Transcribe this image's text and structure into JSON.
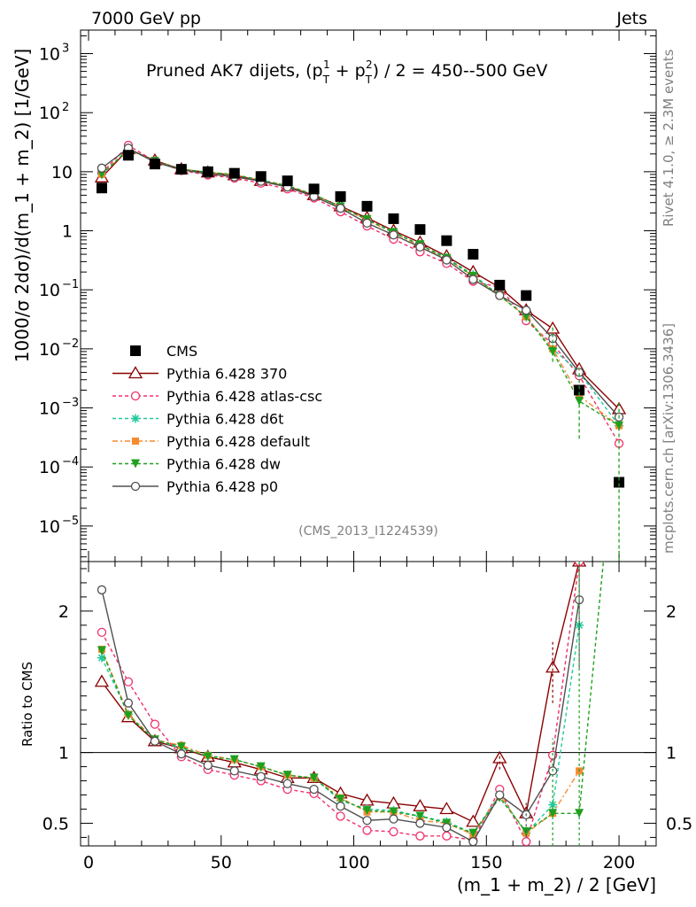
{
  "header": {
    "left": "7000 GeV pp",
    "right": "Jets"
  },
  "side": {
    "rivet": "Rivet 4.1.0, ≥ 2.3M events",
    "mcplots": "mcplots.cern.ch [arXiv:1306.3436]"
  },
  "chart_data": {
    "type": "line",
    "title": "Pruned AK7 dijets, (p_T^1 + p_T^2) / 2 = 450--500 GeV",
    "title_parts": {
      "a": "Pruned AK7 dijets, (p",
      "sub": "T",
      "sup1": "1",
      "sup2": "2",
      "mid": " + p",
      "end": ") / 2 = 450--500 GeV"
    },
    "analysis_id": "(CMS_2013_I1224539)",
    "xlabel": "(m_1 + m_2) / 2 [GeV]",
    "ylabel_main": "1000/σ  2dσ)/d(m_1 + m_2) [1/GeV]",
    "ylabel_ratio": "Ratio to CMS",
    "xlim": [
      -3,
      214
    ],
    "ylim_main": [
      2.5e-06,
      2500
    ],
    "ylim_ratio": [
      0.34,
      2.35
    ],
    "y_scale_main": "log",
    "x_ticks": [
      0,
      50,
      100,
      150,
      200
    ],
    "y_ticks_main": [
      {
        "v": 1000,
        "t": "10",
        "e": "3"
      },
      {
        "v": 100,
        "t": "10",
        "e": "2"
      },
      {
        "v": 10,
        "t": "10",
        "e": ""
      },
      {
        "v": 1,
        "t": "1",
        "e": ""
      },
      {
        "v": 0.1,
        "t": "10",
        "e": "−1"
      },
      {
        "v": 0.01,
        "t": "10",
        "e": "−2"
      },
      {
        "v": 0.001,
        "t": "10",
        "e": "−3"
      },
      {
        "v": 0.0001,
        "t": "10",
        "e": "−4"
      },
      {
        "v": 1e-05,
        "t": "10",
        "e": "−5"
      }
    ],
    "y_ticks_ratio": [
      0.5,
      1,
      2
    ],
    "x": [
      5,
      15,
      25,
      35,
      45,
      55,
      65,
      75,
      85,
      95,
      105,
      115,
      125,
      135,
      145,
      155,
      165,
      175,
      185,
      200
    ],
    "cms": {
      "name": "CMS",
      "values": [
        5.3,
        19,
        13.5,
        11,
        10,
        9.4,
        8.3,
        7,
        5.1,
        3.8,
        2.6,
        1.6,
        1.05,
        0.68,
        0.4,
        0.12,
        0.08,
        null,
        0.002,
        5.5e-05
      ],
      "color": "#000000"
    },
    "series": [
      {
        "name": "Pythia 6.428 370",
        "color": "#8b0000",
        "marker": "triangle",
        "dash": "",
        "ratio": [
          1.5,
          1.25,
          1.08,
          1.03,
          0.97,
          0.93,
          0.88,
          0.82,
          0.82,
          0.71,
          0.66,
          0.64,
          0.62,
          0.6,
          0.51,
          0.96,
          0.57,
          1.6,
          2.35,
          null
        ]
      },
      {
        "name": "Pythia 6.428 atlas-csc",
        "color": "#f0306a",
        "marker": "circle",
        "dash": "4,3",
        "ratio": [
          1.85,
          1.5,
          1.2,
          0.97,
          0.88,
          0.84,
          0.8,
          0.74,
          0.71,
          0.55,
          0.45,
          0.44,
          0.41,
          0.41,
          0.38,
          0.74,
          0.37,
          0.98,
          2.35,
          null
        ]
      },
      {
        "name": "Pythia 6.428 d6t",
        "color": "#1fc99c",
        "marker": "star",
        "dash": "4,3",
        "ratio": [
          1.67,
          1.27,
          1.09,
          1.03,
          0.98,
          0.95,
          0.9,
          0.84,
          0.82,
          0.66,
          0.6,
          0.59,
          0.55,
          0.51,
          0.43,
          0.7,
          0.43,
          0.63,
          1.9,
          null
        ]
      },
      {
        "name": "Pythia 6.428 default",
        "color": "#f68a2f",
        "marker": "square",
        "dash": "6,3,2,3",
        "ratio": [
          1.73,
          1.27,
          1.09,
          1.05,
          0.98,
          0.95,
          0.9,
          0.84,
          0.82,
          0.68,
          0.58,
          0.58,
          0.52,
          0.5,
          0.42,
          0.7,
          0.43,
          0.57,
          0.87,
          null
        ]
      },
      {
        "name": "Pythia 6.428 dw",
        "color": "#1fa01f",
        "marker": "tridown",
        "dash": "4,3",
        "ratio": [
          1.72,
          1.26,
          1.09,
          1.04,
          0.97,
          0.95,
          0.9,
          0.84,
          0.82,
          0.67,
          0.59,
          0.58,
          0.55,
          0.5,
          0.43,
          0.68,
          0.44,
          0.57,
          0.57,
          3.5
        ]
      },
      {
        "name": "Pythia 6.428 p0",
        "color": "#505050",
        "marker": "circle",
        "dash": "",
        "ratio": [
          2.15,
          1.35,
          1.08,
          0.99,
          0.91,
          0.87,
          0.83,
          0.78,
          0.74,
          0.62,
          0.52,
          0.53,
          0.5,
          0.47,
          0.37,
          0.7,
          0.56,
          0.87,
          2.08,
          null
        ]
      }
    ],
    "main_mc": {
      "Pythia 6.428 370": [
        8,
        24,
        15.5,
        11,
        9.7,
        8.7,
        7,
        5.6,
        4,
        2.6,
        1.65,
        1.0,
        0.63,
        0.37,
        0.2,
        0.11,
        0.045,
        0.022,
        0.0045,
        0.00095
      ],
      "Pythia 6.428 atlas-csc": [
        9.5,
        28,
        15,
        10.5,
        8.8,
        7.8,
        6.4,
        5.1,
        3.6,
        2.1,
        1.2,
        0.72,
        0.44,
        0.28,
        0.14,
        0.11,
        0.03,
        0.012,
        0.0035,
        0.00025
      ],
      "Pythia 6.428 d6t": [
        9,
        24,
        15,
        11,
        9.8,
        8.9,
        7.2,
        5.8,
        4.1,
        2.5,
        1.55,
        0.95,
        0.58,
        0.35,
        0.18,
        0.08,
        0.035,
        0.01,
        0.004,
        0.0005
      ],
      "Pythia 6.428 default": [
        9,
        24,
        15,
        11,
        9.8,
        8.9,
        7.2,
        5.8,
        4.1,
        2.55,
        1.5,
        0.93,
        0.55,
        0.34,
        0.17,
        0.08,
        0.035,
        0.01,
        0.0016,
        0.0005
      ],
      "Pythia 6.428 dw": [
        9,
        24,
        15,
        11,
        9.8,
        8.9,
        7.2,
        5.8,
        4.1,
        2.55,
        1.55,
        0.93,
        0.58,
        0.34,
        0.17,
        0.08,
        0.035,
        0.009,
        0.0013,
        0.0005
      ],
      "Pythia 6.428 p0": [
        11.5,
        25,
        14.5,
        10.8,
        9.2,
        8.2,
        6.9,
        5.5,
        3.8,
        2.4,
        1.35,
        0.85,
        0.53,
        0.32,
        0.15,
        0.08,
        0.045,
        0.015,
        0.004,
        0.0007
      ]
    }
  }
}
